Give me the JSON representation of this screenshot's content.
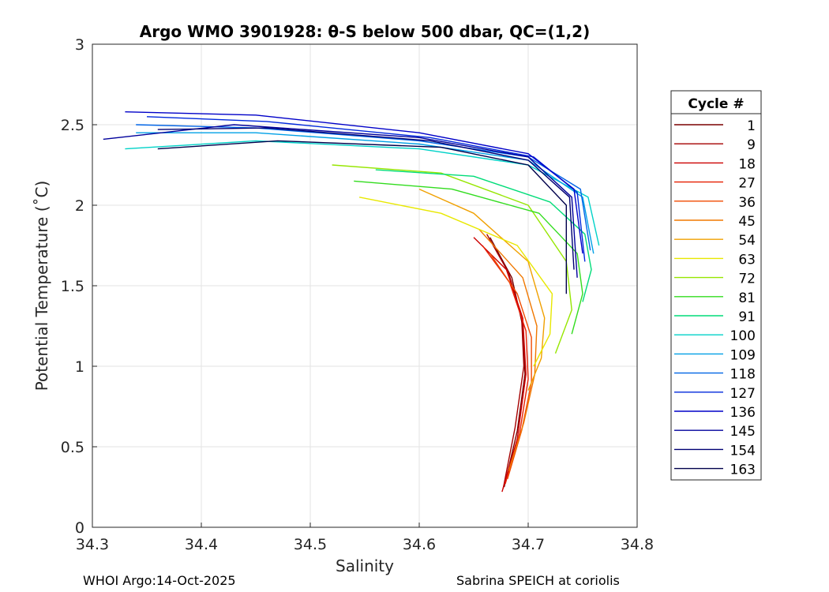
{
  "chart_data": {
    "type": "line",
    "title": "Argo WMO 3901928: θ-S below 500 dbar,  QC=(1,2)",
    "xlabel": "Salinity",
    "ylabel": "Potential Temperature (˚C)",
    "xlim": [
      34.3,
      34.8
    ],
    "ylim": [
      0,
      3
    ],
    "xticks": [
      "34.3",
      "34.4",
      "34.5",
      "34.6",
      "34.7",
      "34.8"
    ],
    "yticks": [
      "0",
      "0.5",
      "1",
      "1.5",
      "2",
      "2.5",
      "3"
    ],
    "grid": true,
    "legend_title": "Cycle #",
    "legend_position": "right-outside",
    "series": [
      {
        "name": "1",
        "color": "#7a0000",
        "s": [
          34.665,
          34.685,
          34.695,
          34.697,
          34.69,
          34.678
        ],
        "t": [
          1.8,
          1.55,
          1.25,
          0.95,
          0.6,
          0.25
        ]
      },
      {
        "name": "9",
        "color": "#a50000",
        "s": [
          34.662,
          34.682,
          34.694,
          34.696,
          34.688,
          34.677
        ],
        "t": [
          1.82,
          1.58,
          1.3,
          1.0,
          0.62,
          0.24
        ]
      },
      {
        "name": "18",
        "color": "#cc0000",
        "s": [
          34.65,
          34.68,
          34.695,
          34.698,
          34.69,
          34.676
        ],
        "t": [
          1.8,
          1.6,
          1.3,
          0.95,
          0.55,
          0.22
        ]
      },
      {
        "name": "27",
        "color": "#e61e00",
        "s": [
          34.658,
          34.683,
          34.698,
          34.7,
          34.692,
          34.679
        ],
        "t": [
          1.75,
          1.52,
          1.22,
          0.92,
          0.58,
          0.27
        ]
      },
      {
        "name": "36",
        "color": "#f04a00",
        "s": [
          34.665,
          34.69,
          34.703,
          34.703,
          34.694,
          34.681
        ],
        "t": [
          1.7,
          1.45,
          1.18,
          0.9,
          0.6,
          0.3
        ]
      },
      {
        "name": "45",
        "color": "#f07800",
        "s": [
          34.655,
          34.695,
          34.708,
          34.706,
          34.696,
          34.682
        ],
        "t": [
          1.85,
          1.55,
          1.25,
          0.95,
          0.65,
          0.35
        ]
      },
      {
        "name": "54",
        "color": "#f0a000",
        "s": [
          34.6,
          34.65,
          34.7,
          34.715,
          34.712,
          34.7
        ],
        "t": [
          2.1,
          1.95,
          1.65,
          1.3,
          1.05,
          0.85
        ]
      },
      {
        "name": "63",
        "color": "#e8e800",
        "s": [
          34.545,
          34.62,
          34.69,
          34.722,
          34.72,
          34.705
        ],
        "t": [
          2.05,
          1.95,
          1.75,
          1.45,
          1.2,
          1.0
        ]
      },
      {
        "name": "72",
        "color": "#96e600",
        "s": [
          34.52,
          34.62,
          34.7,
          34.735,
          34.74,
          34.725
        ],
        "t": [
          2.25,
          2.2,
          2.0,
          1.65,
          1.35,
          1.08
        ]
      },
      {
        "name": "81",
        "color": "#32dc1e",
        "s": [
          34.54,
          34.63,
          34.71,
          34.745,
          34.75,
          34.74
        ],
        "t": [
          2.15,
          2.1,
          1.95,
          1.7,
          1.45,
          1.2
        ]
      },
      {
        "name": "91",
        "color": "#00dc78",
        "s": [
          34.56,
          34.65,
          34.72,
          34.752,
          34.758,
          34.75
        ],
        "t": [
          2.22,
          2.18,
          2.02,
          1.82,
          1.6,
          1.4
        ]
      },
      {
        "name": "100",
        "color": "#00d2c8",
        "s": [
          34.33,
          34.45,
          34.6,
          34.7,
          34.755,
          34.765
        ],
        "t": [
          2.35,
          2.4,
          2.35,
          2.25,
          2.05,
          1.75
        ]
      },
      {
        "name": "109",
        "color": "#00a0e6",
        "s": [
          34.34,
          34.45,
          34.6,
          34.7,
          34.75,
          34.76
        ],
        "t": [
          2.45,
          2.45,
          2.38,
          2.28,
          2.05,
          1.7
        ]
      },
      {
        "name": "118",
        "color": "#0064e6",
        "s": [
          34.34,
          34.45,
          34.6,
          34.7,
          34.748,
          34.757
        ],
        "t": [
          2.5,
          2.48,
          2.4,
          2.3,
          2.1,
          1.72
        ]
      },
      {
        "name": "127",
        "color": "#0028dc",
        "s": [
          34.35,
          34.46,
          34.61,
          34.705,
          34.745,
          34.752
        ],
        "t": [
          2.55,
          2.52,
          2.42,
          2.3,
          2.08,
          1.65
        ]
      },
      {
        "name": "136",
        "color": "#0000c8",
        "s": [
          34.33,
          34.45,
          34.6,
          34.7,
          34.742,
          34.75
        ],
        "t": [
          2.58,
          2.56,
          2.45,
          2.32,
          2.1,
          1.7
        ]
      },
      {
        "name": "145",
        "color": "#00009b",
        "s": [
          34.31,
          34.43,
          34.6,
          34.7,
          34.74,
          34.745
        ],
        "t": [
          2.41,
          2.5,
          2.42,
          2.3,
          2.05,
          1.55
        ]
      },
      {
        "name": "154",
        "color": "#000073",
        "s": [
          34.36,
          34.46,
          34.61,
          34.7,
          34.738,
          34.742
        ],
        "t": [
          2.47,
          2.48,
          2.4,
          2.28,
          2.05,
          1.6
        ]
      },
      {
        "name": "163",
        "color": "#00004b",
        "s": [
          34.36,
          34.47,
          34.62,
          34.7,
          34.735,
          34.735
        ],
        "t": [
          2.35,
          2.4,
          2.36,
          2.25,
          2.0,
          1.45
        ]
      }
    ]
  },
  "footer": {
    "left": "WHOI Argo:14-Oct-2025",
    "right": "Sabrina SPEICH at coriolis"
  }
}
